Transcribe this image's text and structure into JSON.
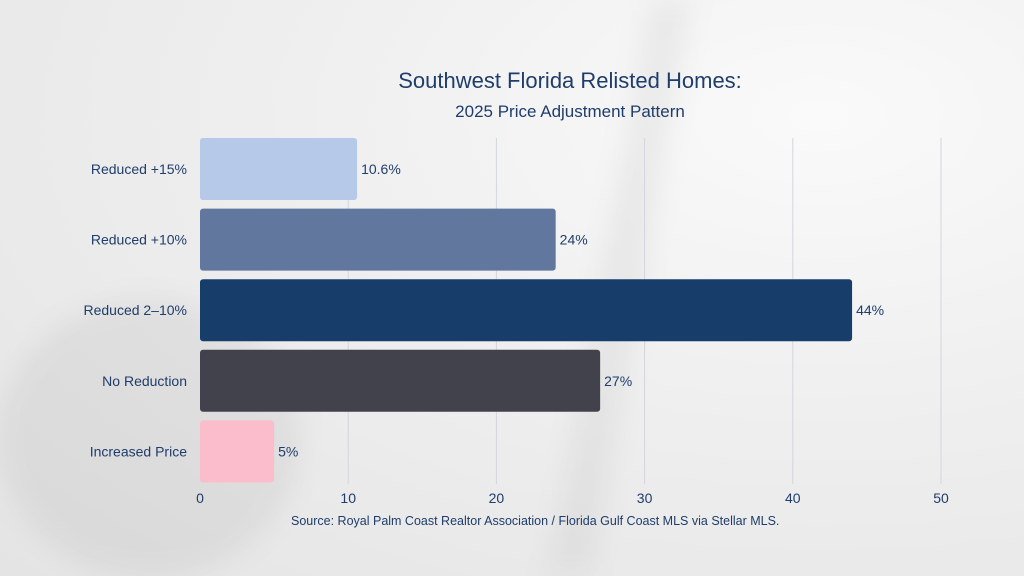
{
  "chart_data": {
    "type": "bar",
    "orientation": "horizontal",
    "title": "Southwest Florida Relisted Homes:",
    "subtitle": "2025 Price Adjustment Pattern",
    "categories": [
      "Reduced +15%",
      "Reduced +10%",
      "Reduced 2–10%",
      "No Reduction",
      "Increased Price"
    ],
    "values": [
      10.6,
      24,
      44,
      27,
      5
    ],
    "data_labels": [
      "10.6%",
      "24%",
      "44%",
      "27%",
      "5%"
    ],
    "colors": [
      "#b7c9e8",
      "#61779e",
      "#173e6b",
      "#42424c",
      "#fbbccb"
    ],
    "xlim": [
      0,
      50
    ],
    "xticks": [
      "0",
      "10",
      "20",
      "30",
      "40",
      "50"
    ],
    "grid": "vertical",
    "xlabel": "",
    "ylabel": "",
    "source": "Source: Royal Palm Coast Realtor Association / Florida Gulf Coast MLS via Stellar MLS."
  }
}
